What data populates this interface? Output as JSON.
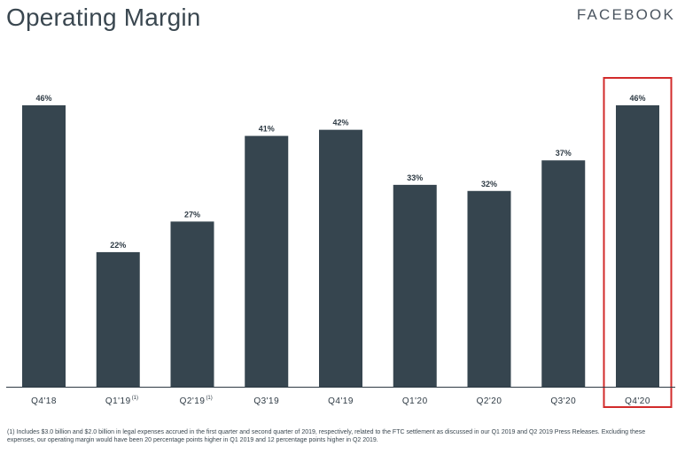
{
  "title": "Operating Margin",
  "brand": "FACEBOOK",
  "chart_data": {
    "type": "bar",
    "categories": [
      "Q4'18",
      "Q1'19",
      "Q2'19",
      "Q3'19",
      "Q4'19",
      "Q1'20",
      "Q2'20",
      "Q3'20",
      "Q4'20"
    ],
    "category_superscripts": [
      "",
      "(1)",
      "(1)",
      "",
      "",
      "",
      "",
      "",
      ""
    ],
    "values": [
      46,
      22,
      27,
      41,
      42,
      33,
      32,
      37,
      46
    ],
    "value_labels": [
      "46%",
      "22%",
      "27%",
      "41%",
      "42%",
      "33%",
      "32%",
      "37%",
      "46%"
    ],
    "ylim": [
      0,
      46
    ],
    "bar_color": "#36454f",
    "highlight": {
      "category": "Q4'20",
      "color": "#d22b2b"
    },
    "grid": false,
    "legend": "none"
  },
  "footnote": "(1) Includes $3.0 billion and $2.0 billion in legal expenses accrued in the first quarter and second quarter of 2019, respectively, related to the FTC settlement as discussed in our Q1 2019 and Q2 2019 Press Releases. Excluding these expenses, our operating margin would have been 20 percentage points higher in Q1 2019 and 12 percentage points higher in Q2 2019."
}
